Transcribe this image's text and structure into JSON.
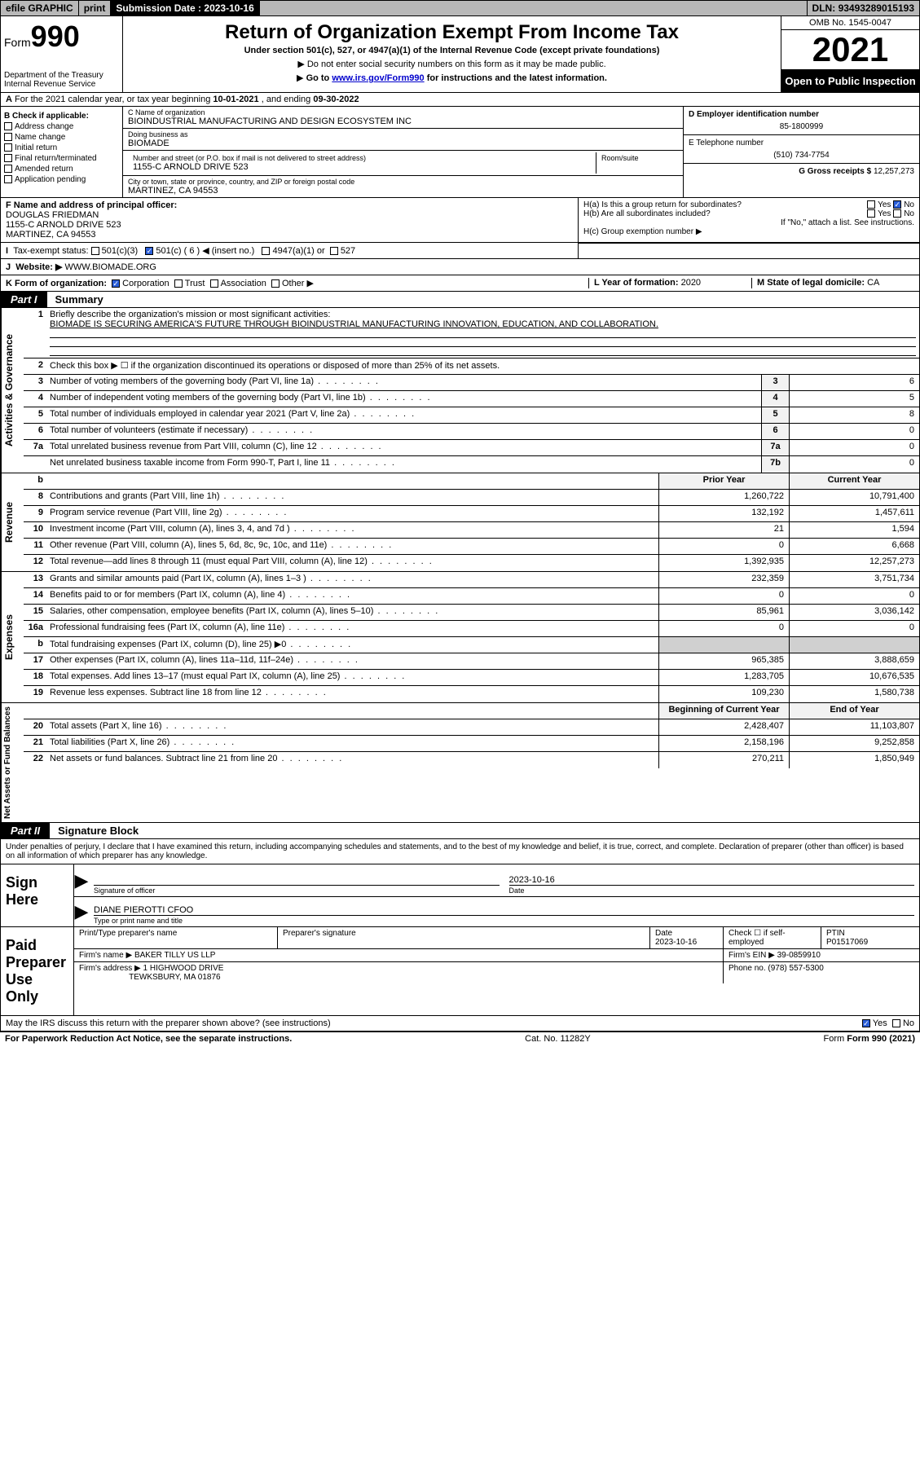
{
  "topbar": {
    "efile": "efile GRAPHIC",
    "print": "print",
    "submission_label": "Submission Date :",
    "submission_date": "2023-10-16",
    "dln_label": "DLN:",
    "dln": "93493289015193"
  },
  "header": {
    "form_label": "Form",
    "form_number": "990",
    "dept": "Department of the Treasury\nInternal Revenue Service",
    "title": "Return of Organization Exempt From Income Tax",
    "subtitle": "Under section 501(c), 527, or 4947(a)(1) of the Internal Revenue Code (except private foundations)",
    "note1": "Do not enter social security numbers on this form as it may be made public.",
    "note2_a": "Go to ",
    "note2_link": "www.irs.gov/Form990",
    "note2_b": " for instructions and the latest information.",
    "omb": "OMB No. 1545-0047",
    "year": "2021",
    "open": "Open to Public Inspection"
  },
  "sectA": {
    "prefix": "A",
    "text_a": "For the 2021 calendar year, or tax year beginning ",
    "beg": "10-01-2021",
    "mid": " , and ending ",
    "end": "09-30-2022"
  },
  "boxB": {
    "label": "B Check if applicable:",
    "items": [
      "Address change",
      "Name change",
      "Initial return",
      "Final return/terminated",
      "Amended return",
      "Application pending"
    ]
  },
  "boxC": {
    "name_label": "C Name of organization",
    "name": "BIOINDUSTRIAL MANUFACTURING AND DESIGN ECOSYSTEM INC",
    "dba_label": "Doing business as",
    "dba": "BIOMADE",
    "street_label": "Number and street (or P.O. box if mail is not delivered to street address)",
    "room_label": "Room/suite",
    "street": "1155-C ARNOLD DRIVE 523",
    "city_label": "City or town, state or province, country, and ZIP or foreign postal code",
    "city": "MARTINEZ, CA  94553"
  },
  "boxD": {
    "label": "D Employer identification number",
    "val": "85-1800999"
  },
  "boxE": {
    "label": "E Telephone number",
    "val": "(510) 734-7754"
  },
  "boxG": {
    "label": "G Gross receipts $",
    "val": "12,257,273"
  },
  "boxF": {
    "label": "F Name and address of principal officer:",
    "name": "DOUGLAS FRIEDMAN",
    "addr1": "1155-C ARNOLD DRIVE 523",
    "addr2": "MARTINEZ, CA  94553"
  },
  "boxH": {
    "a_label": "H(a)  Is this a group return for subordinates?",
    "yes": "Yes",
    "no": "No",
    "b_label": "H(b)  Are all subordinates included?",
    "b_note": "If \"No,\" attach a list. See instructions.",
    "c_label": "H(c)  Group exemption number ▶"
  },
  "rowI": {
    "label": "Tax-exempt status:",
    "o1": "501(c)(3)",
    "o2": "501(c) ( 6 ) ◀ (insert no.)",
    "o3": "4947(a)(1) or",
    "o4": "527"
  },
  "rowJ": {
    "label": "Website: ▶",
    "val": "WWW.BIOMADE.ORG"
  },
  "rowK": {
    "label": "K Form of organization:",
    "o1": "Corporation",
    "o2": "Trust",
    "o3": "Association",
    "o4": "Other ▶"
  },
  "rowL": {
    "label": "L Year of formation:",
    "val": "2020"
  },
  "rowM": {
    "label": "M State of legal domicile:",
    "val": "CA"
  },
  "partI": {
    "tab": "Part I",
    "title": "Summary"
  },
  "summary": {
    "s1": {
      "vlabel": "Activities & Governance",
      "l1_n": "1",
      "l1_t": "Briefly describe the organization's mission or most significant activities:",
      "l1_mission": "BIOMADE IS SECURING AMERICA'S FUTURE THROUGH BIOINDUSTRIAL MANUFACTURING INNOVATION, EDUCATION, AND COLLABORATION.",
      "l2_n": "2",
      "l2_t": "Check this box ▶ ☐  if the organization discontinued its operations or disposed of more than 25% of its net assets.",
      "l3_n": "3",
      "l3_t": "Number of voting members of the governing body (Part VI, line 1a)",
      "l3_nb": "3",
      "l3_v": "6",
      "l4_n": "4",
      "l4_t": "Number of independent voting members of the governing body (Part VI, line 1b)",
      "l4_nb": "4",
      "l4_v": "5",
      "l5_n": "5",
      "l5_t": "Total number of individuals employed in calendar year 2021 (Part V, line 2a)",
      "l5_nb": "5",
      "l5_v": "8",
      "l6_n": "6",
      "l6_t": "Total number of volunteers (estimate if necessary)",
      "l6_nb": "6",
      "l6_v": "0",
      "l7a_n": "7a",
      "l7a_t": "Total unrelated business revenue from Part VIII, column (C), line 12",
      "l7a_nb": "7a",
      "l7a_v": "0",
      "l7b_n": "",
      "l7b_t": "Net unrelated business taxable income from Form 990-T, Part I, line 11",
      "l7b_nb": "7b",
      "l7b_v": "0"
    },
    "s2": {
      "vlabel": "Revenue",
      "hdr_prior": "Prior Year",
      "hdr_curr": "Current Year",
      "rows": [
        {
          "n": "8",
          "t": "Contributions and grants (Part VIII, line 1h)",
          "p": "1,260,722",
          "c": "10,791,400"
        },
        {
          "n": "9",
          "t": "Program service revenue (Part VIII, line 2g)",
          "p": "132,192",
          "c": "1,457,611"
        },
        {
          "n": "10",
          "t": "Investment income (Part VIII, column (A), lines 3, 4, and 7d )",
          "p": "21",
          "c": "1,594"
        },
        {
          "n": "11",
          "t": "Other revenue (Part VIII, column (A), lines 5, 6d, 8c, 9c, 10c, and 11e)",
          "p": "0",
          "c": "6,668"
        },
        {
          "n": "12",
          "t": "Total revenue—add lines 8 through 11 (must equal Part VIII, column (A), line 12)",
          "p": "1,392,935",
          "c": "12,257,273"
        }
      ]
    },
    "s3": {
      "vlabel": "Expenses",
      "rows": [
        {
          "n": "13",
          "t": "Grants and similar amounts paid (Part IX, column (A), lines 1–3 )",
          "p": "232,359",
          "c": "3,751,734"
        },
        {
          "n": "14",
          "t": "Benefits paid to or for members (Part IX, column (A), line 4)",
          "p": "0",
          "c": "0"
        },
        {
          "n": "15",
          "t": "Salaries, other compensation, employee benefits (Part IX, column (A), lines 5–10)",
          "p": "85,961",
          "c": "3,036,142"
        },
        {
          "n": "16a",
          "t": "Professional fundraising fees (Part IX, column (A), line 11e)",
          "p": "0",
          "c": "0"
        },
        {
          "n": "b",
          "t": "Total fundraising expenses (Part IX, column (D), line 25) ▶0",
          "p": "",
          "c": "",
          "shade": true
        },
        {
          "n": "17",
          "t": "Other expenses (Part IX, column (A), lines 11a–11d, 11f–24e)",
          "p": "965,385",
          "c": "3,888,659"
        },
        {
          "n": "18",
          "t": "Total expenses. Add lines 13–17 (must equal Part IX, column (A), line 25)",
          "p": "1,283,705",
          "c": "10,676,535"
        },
        {
          "n": "19",
          "t": "Revenue less expenses. Subtract line 18 from line 12",
          "p": "109,230",
          "c": "1,580,738"
        }
      ]
    },
    "s4": {
      "vlabel": "Net Assets or Fund Balances",
      "hdr_prior": "Beginning of Current Year",
      "hdr_curr": "End of Year",
      "rows": [
        {
          "n": "20",
          "t": "Total assets (Part X, line 16)",
          "p": "2,428,407",
          "c": "11,103,807"
        },
        {
          "n": "21",
          "t": "Total liabilities (Part X, line 26)",
          "p": "2,158,196",
          "c": "9,252,858"
        },
        {
          "n": "22",
          "t": "Net assets or fund balances. Subtract line 21 from line 20",
          "p": "270,211",
          "c": "1,850,949"
        }
      ]
    }
  },
  "partII": {
    "tab": "Part II",
    "title": "Signature Block"
  },
  "sig": {
    "decl": "Under penalties of perjury, I declare that I have examined this return, including accompanying schedules and statements, and to the best of my knowledge and belief, it is true, correct, and complete. Declaration of preparer (other than officer) is based on all information of which preparer has any knowledge.",
    "sign_here": "Sign Here",
    "sig_officer": "Signature of officer",
    "sig_date": "2023-10-16",
    "date_lbl": "Date",
    "name_title": "DIANE PIEROTTI  CFOO",
    "name_title_lbl": "Type or print name and title",
    "paid": "Paid Preparer Use Only",
    "p_name_lbl": "Print/Type preparer's name",
    "p_sig_lbl": "Preparer's signature",
    "p_date_lbl": "Date",
    "p_date": "2023-10-16",
    "p_check_lbl": "Check ☐ if self-employed",
    "ptin_lbl": "PTIN",
    "ptin": "P01517069",
    "firm_name_lbl": "Firm's name   ▶",
    "firm_name": "BAKER TILLY US LLP",
    "firm_ein_lbl": "Firm's EIN ▶",
    "firm_ein": "39-0859910",
    "firm_addr_lbl": "Firm's address ▶",
    "firm_addr1": "1 HIGHWOOD DRIVE",
    "firm_addr2": "TEWKSBURY, MA  01876",
    "firm_phone_lbl": "Phone no.",
    "firm_phone": "(978) 557-5300",
    "discuss": "May the IRS discuss this return with the preparer shown above? (see instructions)",
    "yes": "Yes",
    "no": "No"
  },
  "footer": {
    "l": "For Paperwork Reduction Act Notice, see the separate instructions.",
    "c": "Cat. No. 11282Y",
    "r": "Form 990 (2021)"
  }
}
